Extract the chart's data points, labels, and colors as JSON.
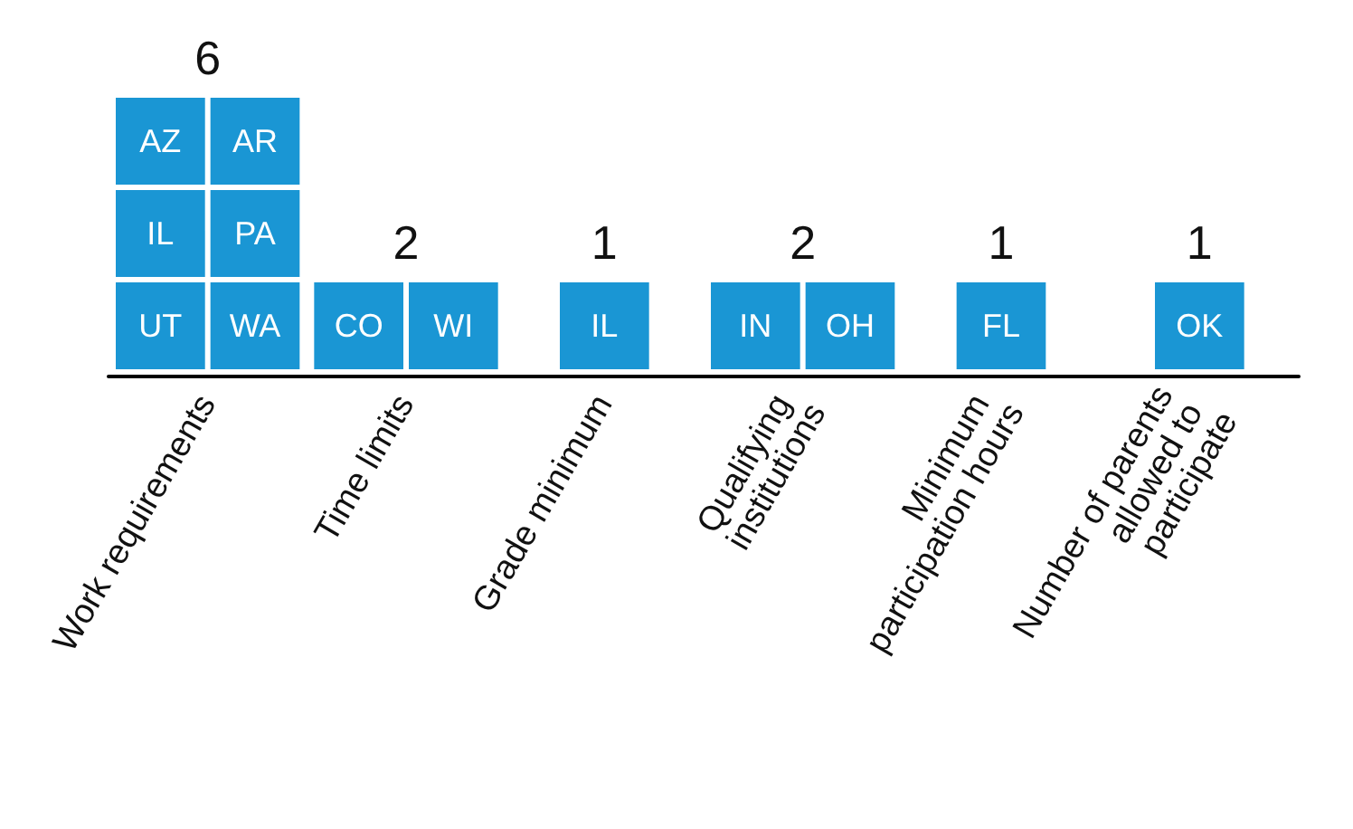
{
  "chart_data": {
    "type": "other",
    "categories": [
      "Work requirements",
      "Time limits",
      "Grade minimum",
      "Qualifying institutions",
      "Minimum participation hours",
      "Number of parents allowed to participate"
    ],
    "values": [
      6,
      2,
      1,
      2,
      1,
      1
    ],
    "color": "#1a96d4",
    "data_labels": true,
    "annotations": [
      "UT",
      "WA",
      "IL",
      "PA",
      "AZ",
      "AR",
      "CO",
      "WI",
      "IL",
      "IN",
      "OH",
      "FL",
      "OK"
    ]
  }
}
